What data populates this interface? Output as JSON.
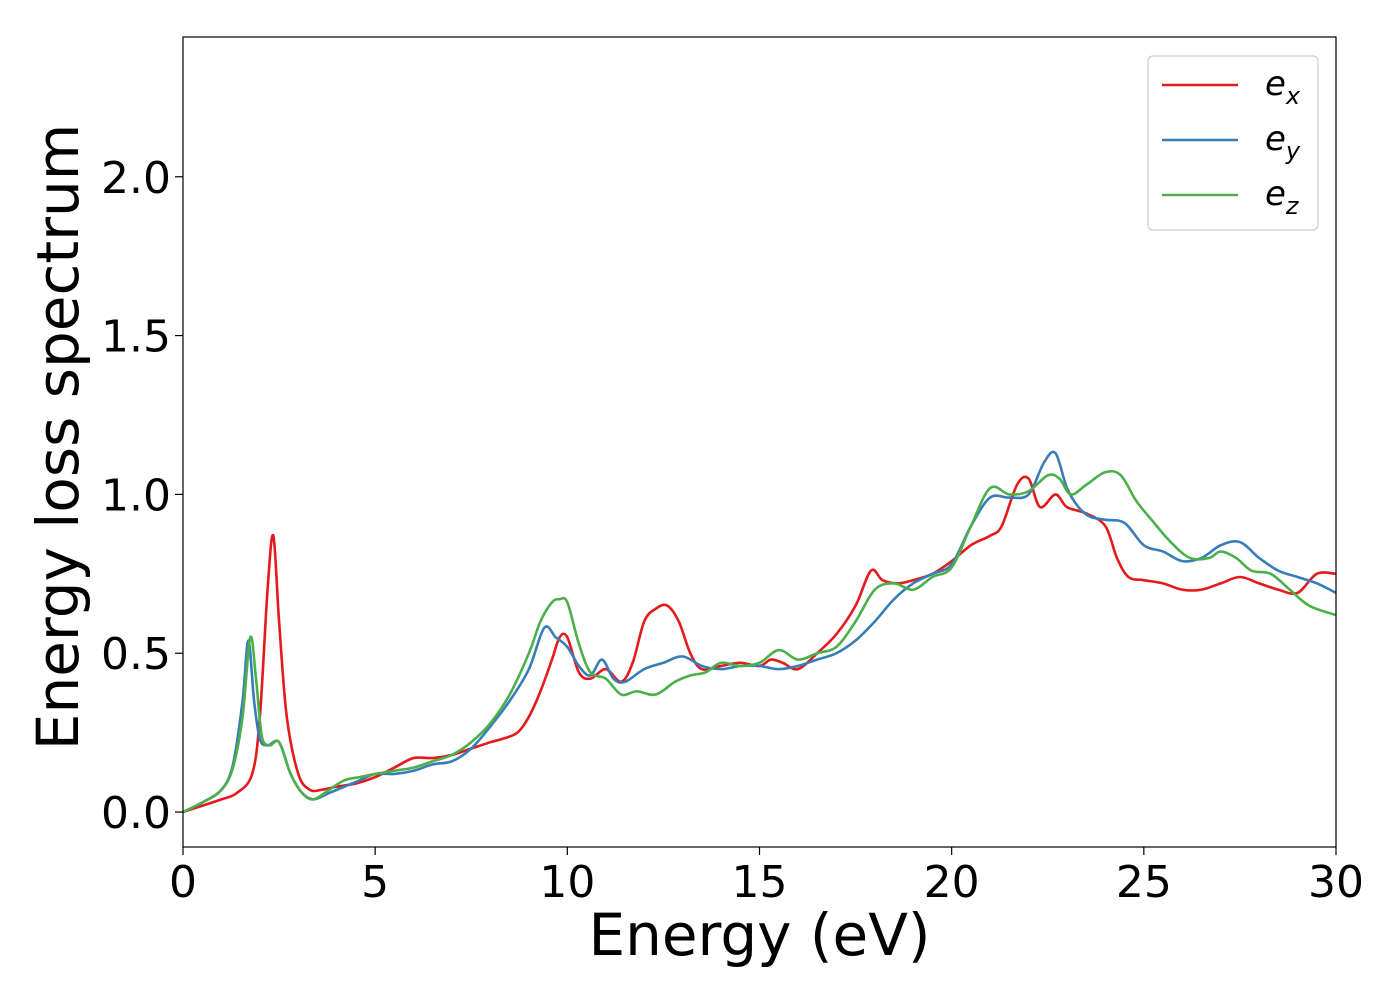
{
  "chart_data": {
    "type": "line",
    "xlabel": "Energy (eV)",
    "ylabel": "Energy loss spectrum",
    "xlim": [
      0,
      30
    ],
    "ylim": [
      -0.11,
      2.44
    ],
    "xticks": [
      0,
      5,
      10,
      15,
      20,
      25,
      30
    ],
    "xtick_labels": [
      "0",
      "5",
      "10",
      "15",
      "20",
      "25",
      "30"
    ],
    "yticks": [
      0.0,
      0.5,
      1.0,
      1.5,
      2.0
    ],
    "ytick_labels": [
      "0.0",
      "0.5",
      "1.0",
      "1.5",
      "2.0"
    ],
    "grid": false,
    "legend_position": "top-right",
    "series": [
      {
        "name": "e_x",
        "legend_base": "e",
        "legend_sub": "x",
        "color": "#e41a1c",
        "x": [
          0,
          0.5,
          1.0,
          1.4,
          1.8,
          2.0,
          2.2,
          2.35,
          2.5,
          2.7,
          3.0,
          3.3,
          3.6,
          4.0,
          4.5,
          5.0,
          5.5,
          6.0,
          6.5,
          7.0,
          7.5,
          8.0,
          8.3,
          8.7,
          9.0,
          9.3,
          9.6,
          9.8,
          10.0,
          10.3,
          10.6,
          11.0,
          11.4,
          11.7,
          12.0,
          12.3,
          12.6,
          12.9,
          13.2,
          13.5,
          14.0,
          14.5,
          15.0,
          15.3,
          15.6,
          16.0,
          16.5,
          17.0,
          17.5,
          17.9,
          18.2,
          18.6,
          19.0,
          19.5,
          20.0,
          20.5,
          21.0,
          21.3,
          21.7,
          22.0,
          22.3,
          22.7,
          23.0,
          23.5,
          24.0,
          24.3,
          24.6,
          25.0,
          25.5,
          26.0,
          26.5,
          27.0,
          27.5,
          28.0,
          28.5,
          29.0,
          29.5,
          30.0
        ],
        "y": [
          0.0,
          0.02,
          0.04,
          0.06,
          0.12,
          0.3,
          0.7,
          0.87,
          0.6,
          0.3,
          0.12,
          0.07,
          0.07,
          0.08,
          0.09,
          0.11,
          0.14,
          0.17,
          0.17,
          0.18,
          0.2,
          0.22,
          0.23,
          0.25,
          0.3,
          0.38,
          0.48,
          0.55,
          0.55,
          0.44,
          0.42,
          0.45,
          0.41,
          0.47,
          0.6,
          0.64,
          0.65,
          0.6,
          0.5,
          0.45,
          0.46,
          0.47,
          0.46,
          0.48,
          0.47,
          0.45,
          0.5,
          0.56,
          0.65,
          0.76,
          0.73,
          0.72,
          0.73,
          0.75,
          0.79,
          0.84,
          0.87,
          0.9,
          1.03,
          1.05,
          0.96,
          1.0,
          0.96,
          0.94,
          0.9,
          0.8,
          0.74,
          0.73,
          0.72,
          0.7,
          0.7,
          0.72,
          0.74,
          0.72,
          0.7,
          0.69,
          0.75,
          0.75
        ]
      },
      {
        "name": "e_y",
        "legend_base": "e",
        "legend_sub": "y",
        "color": "#377eb8",
        "x": [
          0,
          0.5,
          1.0,
          1.3,
          1.55,
          1.7,
          1.85,
          2.0,
          2.2,
          2.5,
          2.8,
          3.1,
          3.4,
          3.8,
          4.2,
          4.6,
          5.0,
          5.5,
          6.0,
          6.5,
          7.0,
          7.5,
          8.0,
          8.5,
          9.0,
          9.4,
          9.7,
          10.0,
          10.3,
          10.6,
          10.9,
          11.2,
          11.5,
          12.0,
          12.5,
          13.0,
          13.5,
          14.0,
          14.5,
          15.0,
          15.5,
          16.0,
          16.5,
          17.0,
          17.5,
          18.0,
          18.5,
          19.0,
          19.5,
          20.0,
          20.5,
          21.0,
          21.5,
          22.0,
          22.4,
          22.7,
          23.0,
          23.3,
          23.6,
          24.0,
          24.5,
          25.0,
          25.5,
          26.0,
          26.5,
          27.0,
          27.5,
          28.0,
          28.5,
          29.0,
          29.5,
          30.0
        ],
        "y": [
          0.0,
          0.03,
          0.07,
          0.15,
          0.35,
          0.54,
          0.35,
          0.23,
          0.21,
          0.22,
          0.12,
          0.06,
          0.04,
          0.06,
          0.08,
          0.1,
          0.12,
          0.12,
          0.13,
          0.15,
          0.16,
          0.2,
          0.27,
          0.35,
          0.45,
          0.58,
          0.55,
          0.52,
          0.46,
          0.43,
          0.48,
          0.42,
          0.41,
          0.45,
          0.47,
          0.49,
          0.46,
          0.45,
          0.46,
          0.46,
          0.45,
          0.46,
          0.48,
          0.5,
          0.54,
          0.6,
          0.67,
          0.72,
          0.75,
          0.78,
          0.9,
          0.99,
          0.99,
          1.0,
          1.1,
          1.13,
          1.02,
          0.96,
          0.93,
          0.92,
          0.91,
          0.84,
          0.82,
          0.79,
          0.8,
          0.84,
          0.85,
          0.8,
          0.76,
          0.74,
          0.72,
          0.69
        ]
      },
      {
        "name": "e_z",
        "legend_base": "e",
        "legend_sub": "z",
        "color": "#4daf4a",
        "x": [
          0,
          0.5,
          1.0,
          1.3,
          1.55,
          1.75,
          1.9,
          2.05,
          2.25,
          2.5,
          2.8,
          3.1,
          3.4,
          3.8,
          4.2,
          4.6,
          5.0,
          5.5,
          6.0,
          6.5,
          7.0,
          7.5,
          8.0,
          8.5,
          9.0,
          9.3,
          9.6,
          9.8,
          10.0,
          10.3,
          10.6,
          11.0,
          11.4,
          11.8,
          12.3,
          12.8,
          13.2,
          13.6,
          14.0,
          14.5,
          15.0,
          15.5,
          16.0,
          16.5,
          17.0,
          17.5,
          18.0,
          18.5,
          19.0,
          19.5,
          20.0,
          20.5,
          21.0,
          21.5,
          22.0,
          22.5,
          22.8,
          23.1,
          23.5,
          24.0,
          24.4,
          24.8,
          25.2,
          25.7,
          26.2,
          26.7,
          27.0,
          27.4,
          27.8,
          28.3,
          28.8,
          29.3,
          30.0
        ],
        "y": [
          0.0,
          0.03,
          0.07,
          0.14,
          0.3,
          0.55,
          0.42,
          0.24,
          0.21,
          0.22,
          0.12,
          0.06,
          0.04,
          0.07,
          0.1,
          0.11,
          0.12,
          0.13,
          0.14,
          0.16,
          0.18,
          0.22,
          0.28,
          0.37,
          0.5,
          0.6,
          0.66,
          0.67,
          0.66,
          0.53,
          0.44,
          0.42,
          0.37,
          0.38,
          0.37,
          0.41,
          0.43,
          0.44,
          0.47,
          0.46,
          0.47,
          0.51,
          0.48,
          0.5,
          0.52,
          0.6,
          0.7,
          0.72,
          0.7,
          0.74,
          0.77,
          0.9,
          1.02,
          1.0,
          1.01,
          1.06,
          1.05,
          1.0,
          1.03,
          1.07,
          1.06,
          0.98,
          0.92,
          0.85,
          0.8,
          0.8,
          0.82,
          0.8,
          0.76,
          0.75,
          0.7,
          0.65,
          0.62
        ]
      }
    ]
  }
}
